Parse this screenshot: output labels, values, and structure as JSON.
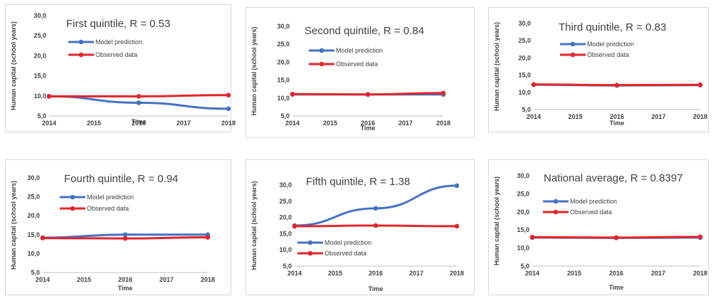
{
  "colors": {
    "model": "#4472C4",
    "observed": "#E3242B",
    "axis": "#BFBFBF",
    "text": "#404040"
  },
  "legend": {
    "model": "Model prediction",
    "observed": "Observed data"
  },
  "chart_data": [
    {
      "type": "line",
      "title": "First quintile, R = 0.53",
      "xlabel": "Time",
      "ylabel": "Human capital (school years)",
      "x_ticks": [
        "2014",
        "2015",
        "2016",
        "2017",
        "2018"
      ],
      "y_ticks": [
        "5,0",
        "10,0",
        "15,0",
        "20,0",
        "25,0",
        "30,0"
      ],
      "xlim": [
        2014,
        2018
      ],
      "ylim": [
        5,
        30
      ],
      "series": [
        {
          "name": "Model prediction",
          "x": [
            2014,
            2016,
            2018
          ],
          "y": [
            9.9,
            8.3,
            6.8
          ]
        },
        {
          "name": "Observed data",
          "x": [
            2014,
            2016,
            2018
          ],
          "y": [
            9.9,
            9.9,
            10.2
          ]
        }
      ]
    },
    {
      "type": "line",
      "title": "Second quintile, R = 0.84",
      "xlabel": "Time",
      "ylabel": "Human capital (school years)",
      "x_ticks": [
        "2014",
        "2015",
        "2016",
        "2017",
        "2018"
      ],
      "y_ticks": [
        "5,0",
        "10,0",
        "15,0",
        "20,0",
        "25,0",
        "30,0"
      ],
      "xlim": [
        2014,
        2018
      ],
      "ylim": [
        5,
        30
      ],
      "series": [
        {
          "name": "Model prediction",
          "x": [
            2014,
            2016,
            2018
          ],
          "y": [
            11.0,
            11.0,
            11.0
          ]
        },
        {
          "name": "Observed data",
          "x": [
            2014,
            2016,
            2018
          ],
          "y": [
            11.1,
            11.0,
            11.4
          ]
        }
      ]
    },
    {
      "type": "line",
      "title": "Third quintile, R = 0.83",
      "xlabel": "Time",
      "ylabel": "Human capital (school years)",
      "x_ticks": [
        "2014",
        "2015",
        "2016",
        "2017",
        "2018"
      ],
      "y_ticks": [
        "5,0",
        "10,0",
        "15,0",
        "20,0",
        "25,0",
        "30,0"
      ],
      "xlim": [
        2014,
        2018
      ],
      "ylim": [
        5,
        30
      ],
      "series": [
        {
          "name": "Model prediction",
          "x": [
            2014,
            2016,
            2018
          ],
          "y": [
            12.2,
            12.0,
            12.1
          ]
        },
        {
          "name": "Observed data",
          "x": [
            2014,
            2016,
            2018
          ],
          "y": [
            12.3,
            12.1,
            12.2
          ]
        }
      ]
    },
    {
      "type": "line",
      "title": "Fourth quintile, R = 0.94",
      "xlabel": "Time",
      "ylabel": "Human capital (school years)",
      "x_ticks": [
        "2014",
        "2015",
        "2016",
        "2017",
        "2018"
      ],
      "y_ticks": [
        "5,0",
        "10,0",
        "15,0",
        "20,0",
        "25,0",
        "30,0"
      ],
      "xlim": [
        2014,
        2018
      ],
      "ylim": [
        5,
        30
      ],
      "series": [
        {
          "name": "Model prediction",
          "x": [
            2014,
            2016,
            2018
          ],
          "y": [
            14.2,
            15.0,
            15.0
          ]
        },
        {
          "name": "Observed data",
          "x": [
            2014,
            2016,
            2018
          ],
          "y": [
            14.1,
            14.0,
            14.3
          ]
        }
      ]
    },
    {
      "type": "line",
      "title": "Fifth quintile, R = 1.38",
      "xlabel": "Time",
      "ylabel": "Human capital (school years)",
      "x_ticks": [
        "2014",
        "2015",
        "2016",
        "2017",
        "2018"
      ],
      "y_ticks": [
        "5,0",
        "10,0",
        "15,0",
        "20,0",
        "25,0",
        "30,0"
      ],
      "xlim": [
        2014,
        2018
      ],
      "ylim": [
        5,
        30
      ],
      "series": [
        {
          "name": "Model prediction",
          "x": [
            2014,
            2016,
            2018
          ],
          "y": [
            17.5,
            22.8,
            29.8
          ]
        },
        {
          "name": "Observed data",
          "x": [
            2014,
            2016,
            2018
          ],
          "y": [
            17.3,
            17.5,
            17.3
          ]
        }
      ]
    },
    {
      "type": "line",
      "title": "National average, R = 0.8397",
      "xlabel": "Time",
      "ylabel": "Human capital (school years)",
      "x_ticks": [
        "2014",
        "2015",
        "2016",
        "2017",
        "2018"
      ],
      "y_ticks": [
        "5,0",
        "10,0",
        "15,0",
        "20,0",
        "25,0",
        "30,0"
      ],
      "xlim": [
        2014,
        2018
      ],
      "ylim": [
        5,
        30
      ],
      "series": [
        {
          "name": "Model prediction",
          "x": [
            2014,
            2016,
            2018
          ],
          "y": [
            12.9,
            12.8,
            12.9
          ]
        },
        {
          "name": "Observed data",
          "x": [
            2014,
            2016,
            2018
          ],
          "y": [
            13.0,
            12.9,
            13.1
          ]
        }
      ]
    }
  ]
}
